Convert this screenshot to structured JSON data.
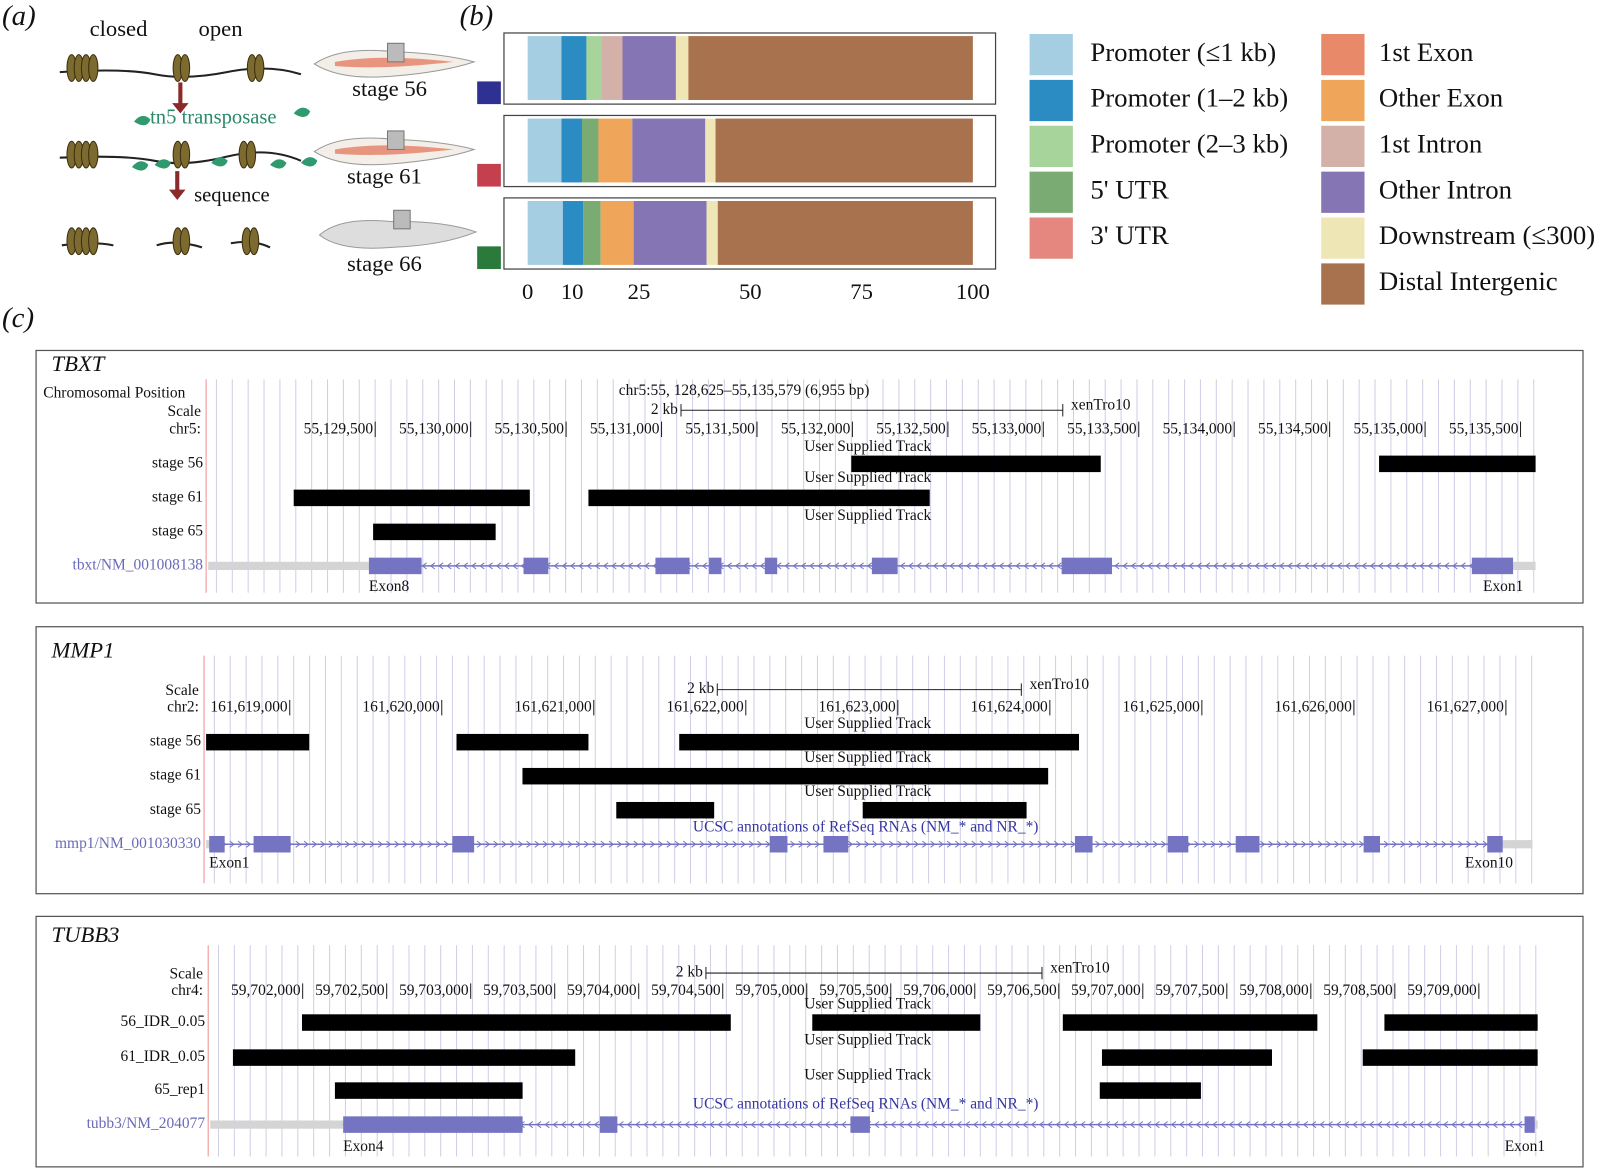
{
  "panel_labels": [
    "(a)",
    "(b)",
    "(c)"
  ],
  "schematic": {
    "closed": "closed",
    "open": "open",
    "enzyme": "tn5 transposase",
    "step": "sequence",
    "stages": [
      "stage 56",
      "stage 61",
      "stage 66"
    ]
  },
  "chart_data": {
    "type": "bar",
    "orientation": "horizontal",
    "stacked": true,
    "categories": [
      null,
      null,
      null
    ],
    "row_colors": [
      "#2e3192",
      "#c5404e",
      "#2a7b3b"
    ],
    "xlim": [
      0,
      100
    ],
    "xticks": [
      0,
      10,
      25,
      50,
      75,
      100
    ],
    "series": [
      {
        "name": "Promoter (≤1 kb)",
        "color": "#a6cee3",
        "values": [
          7.6,
          7.6,
          7.9
        ]
      },
      {
        "name": "Promoter (1–2 kb)",
        "color": "#2b8cc4",
        "values": [
          5.6,
          4.6,
          4.6
        ]
      },
      {
        "name": "Promoter (2–3 kb)",
        "color": "#a6d49a",
        "values": [
          3.5,
          0,
          0
        ]
      },
      {
        "name": "5' UTR",
        "color": "#7aab72",
        "values": [
          0,
          3.7,
          3.9
        ]
      },
      {
        "name": "3' UTR",
        "color": "#e6877f",
        "values": [
          0,
          0,
          0
        ]
      },
      {
        "name": "1st Exon",
        "color": "#e8896a",
        "values": [
          0,
          0,
          0
        ]
      },
      {
        "name": "Other Exon",
        "color": "#efa65a",
        "values": [
          0,
          7.6,
          7.4
        ]
      },
      {
        "name": "1st Intron",
        "color": "#d4b1a8",
        "values": [
          4.6,
          0,
          0
        ]
      },
      {
        "name": "Other Intron",
        "color": "#8575b5",
        "values": [
          12,
          16.4,
          16.4
        ]
      },
      {
        "name": "Downstream (≤300)",
        "color": "#efe6b5",
        "values": [
          2.8,
          2.3,
          2.5
        ]
      },
      {
        "name": "Distal Intergenic",
        "color": "#a9724f",
        "values": [
          63.9,
          57.8,
          57.3
        ]
      }
    ]
  },
  "browser": {
    "panels": [
      {
        "gene": "TBXT",
        "position_label": "Chromosomal Position",
        "position": "chr5:55, 128,625–55,135,579 (6,955 bp)",
        "scale_label": "Scale",
        "chr_label": "chr5:",
        "scale_bar": {
          "value": 2000,
          "label": "2 kb"
        },
        "assembly": "xenTro10",
        "xlim": [
          55128625,
          55135579
        ],
        "xticks": [
          {
            "value": 55129500,
            "label": "55,129,500"
          },
          {
            "value": 55130000,
            "label": "55,130,000"
          },
          {
            "value": 55130500,
            "label": "55,130,500"
          },
          {
            "value": 55131000,
            "label": "55,131,000"
          },
          {
            "value": 55131500,
            "label": "55,131,500"
          },
          {
            "value": 55132000,
            "label": "55,132,000"
          },
          {
            "value": 55132500,
            "label": "55,132,500"
          },
          {
            "value": 55133000,
            "label": "55,133,000"
          },
          {
            "value": 55133500,
            "label": "55,133,500"
          },
          {
            "value": 55134000,
            "label": "55,134,000"
          },
          {
            "value": 55134500,
            "label": "55,134,500"
          },
          {
            "value": 55135000,
            "label": "55,135,000"
          },
          {
            "value": 55135500,
            "label": "55,135,500"
          }
        ],
        "tracks": [
          {
            "name": "stage 56",
            "title": "User Supplied Track",
            "peaks": [
              [
                55131994,
                55133301
              ],
              [
                55134759,
                55135579
              ]
            ]
          },
          {
            "name": "stage 61",
            "title": "User Supplied Track",
            "peaks": [
              [
                55129073,
                55130310
              ],
              [
                55130617,
                55132405
              ]
            ]
          },
          {
            "name": "stage 65",
            "title": "User Supplied Track",
            "peaks": [
              [
                55129489,
                55130131
              ]
            ]
          }
        ],
        "gene_track": {
          "name": "tbxt/NM_001008138",
          "strand": "-",
          "exons": [
            [
              55129467,
              55129743
            ],
            [
              55130277,
              55130407
            ],
            [
              55130968,
              55131147
            ],
            [
              55131249,
              55131314
            ],
            [
              55131541,
              55131606
            ],
            [
              55132102,
              55132237
            ],
            [
              55133096,
              55133360
            ],
            [
              55135245,
              55135461
            ]
          ],
          "exon_labels": [
            "Exon8",
            "Exon1"
          ]
        }
      },
      {
        "gene": "MMP1",
        "scale_label": "Scale",
        "chr_label": "chr2:",
        "scale_bar": {
          "value": 2000,
          "label": "2 kb"
        },
        "assembly": "xenTro10",
        "xlim": [
          161618450,
          161627175
        ],
        "xticks": [
          {
            "value": 161619000,
            "label": "161,619,000"
          },
          {
            "value": 161620000,
            "label": "161,620,000"
          },
          {
            "value": 161621000,
            "label": "161,621,000"
          },
          {
            "value": 161622000,
            "label": "161,622,000"
          },
          {
            "value": 161623000,
            "label": "161,623,000"
          },
          {
            "value": 161624000,
            "label": "161,624,000"
          },
          {
            "value": 161625000,
            "label": "161,625,000"
          },
          {
            "value": 161626000,
            "label": "161,626,000"
          },
          {
            "value": 161627000,
            "label": "161,627,000"
          }
        ],
        "tracks": [
          {
            "name": "stage 56",
            "title": "User Supplied Track",
            "peaks": [
              [
                161618450,
                161619128
              ],
              [
                161620097,
                161620965
              ],
              [
                161621562,
                161624192
              ]
            ]
          },
          {
            "name": "stage 61",
            "title": "User Supplied Track",
            "peaks": [
              [
                161620531,
                161623989
              ]
            ]
          },
          {
            "name": "stage 65",
            "title": "User Supplied Track",
            "peaks": [
              [
                161621148,
                161621792
              ],
              [
                161622769,
                161623847
              ]
            ]
          }
        ],
        "gene_track": {
          "name": "mmp1/NM_001030330",
          "title": "UCSC annotations of RefSeq RNAs (NM_* and NR_*)",
          "strand": "+",
          "exons": [
            [
              161618470,
              161618572
            ],
            [
              161618762,
              161619006
            ],
            [
              161620070,
              161620213
            ],
            [
              161622158,
              161622274
            ],
            [
              161622511,
              161622674
            ],
            [
              161624165,
              161624281
            ],
            [
              161624775,
              161624911
            ],
            [
              161625223,
              161625379
            ],
            [
              161626064,
              161626172
            ],
            [
              161626877,
              161626979
            ]
          ],
          "exon_labels": [
            "Exon1",
            "Exon10"
          ]
        }
      },
      {
        "gene": "TUBB3",
        "scale_label": "Scale",
        "chr_label": "chr4:",
        "scale_bar": {
          "value": 2000,
          "label": "2 kb"
        },
        "assembly": "xenTro10",
        "xlim": [
          59701450,
          59709350
        ],
        "xticks": [
          {
            "value": 59702000,
            "label": "59,702,000"
          },
          {
            "value": 59702500,
            "label": "59,702,500"
          },
          {
            "value": 59703000,
            "label": "59,703,000"
          },
          {
            "value": 59703500,
            "label": "59,703,500"
          },
          {
            "value": 59704000,
            "label": "59,704,000"
          },
          {
            "value": 59704500,
            "label": "59,704,500"
          },
          {
            "value": 59705000,
            "label": "59,705,000"
          },
          {
            "value": 59705500,
            "label": "59,705,500"
          },
          {
            "value": 59706000,
            "label": "59,706,000"
          },
          {
            "value": 59706500,
            "label": "59,706,500"
          },
          {
            "value": 59707000,
            "label": "59,707,000"
          },
          {
            "value": 59707500,
            "label": "59,707,500"
          },
          {
            "value": 59708000,
            "label": "59,708,000"
          },
          {
            "value": 59708500,
            "label": "59,708,500"
          },
          {
            "value": 59709000,
            "label": "59,709,000"
          }
        ],
        "tracks": [
          {
            "name": "56_IDR_0.05",
            "title": "User Supplied Track",
            "peaks": [
              [
                59701996,
                59704548
              ],
              [
                59705033,
                59706033
              ],
              [
                59706524,
                59708039
              ],
              [
                59708438,
                59709350
              ]
            ]
          },
          {
            "name": "61_IDR_0.05",
            "title": "User Supplied Track",
            "peaks": [
              [
                59701585,
                59703622
              ],
              [
                59706757,
                59707769
              ],
              [
                59708309,
                59709350
              ]
            ]
          },
          {
            "name": "65_rep1",
            "title": "User Supplied Track",
            "peaks": [
              [
                59702192,
                59703309
              ],
              [
                59706744,
                59707346
              ]
            ]
          }
        ],
        "gene_track": {
          "name": "tubb3/NM_204077",
          "title": "UCSC annotations of RefSeq RNAs (NM_* and NR_*)",
          "strand": "-",
          "exons": [
            [
              59702241,
              59703309
            ],
            [
              59703769,
              59703873
            ],
            [
              59705260,
              59705376
            ],
            [
              59709272,
              59709333
            ]
          ],
          "exon_labels": [
            "Exon4",
            "Exon1"
          ]
        }
      }
    ]
  }
}
